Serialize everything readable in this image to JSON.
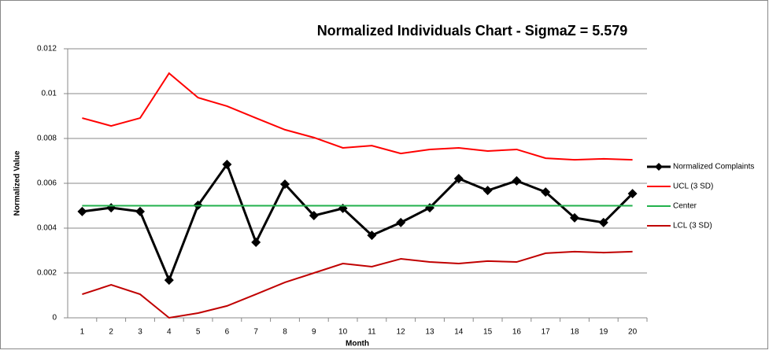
{
  "chart_data": {
    "type": "line",
    "title": "Normalized Individuals Chart - SigmaZ = 5.579",
    "x_label": "Month",
    "y_label": "Normalized Value",
    "categories": [
      "1",
      "2",
      "3",
      "4",
      "5",
      "6",
      "7",
      "8",
      "9",
      "10",
      "11",
      "12",
      "13",
      "14",
      "15",
      "16",
      "17",
      "18",
      "19",
      "20"
    ],
    "series": [
      {
        "name": "Normalized Complaints",
        "color": "#000000",
        "marker": "diamond",
        "values": [
          0.00474,
          0.00491,
          0.00474,
          0.00168,
          0.00502,
          0.00684,
          0.00337,
          0.00596,
          0.00456,
          0.00488,
          0.00368,
          0.00425,
          0.00491,
          0.00621,
          0.00568,
          0.00611,
          0.00561,
          0.00446,
          0.00425,
          0.00554
        ]
      },
      {
        "name": "UCL (3 SD)",
        "color": "#ff0000",
        "values": [
          0.00891,
          0.00856,
          0.00891,
          0.01091,
          0.00982,
          0.00944,
          0.00891,
          0.00839,
          0.00804,
          0.00758,
          0.00768,
          0.00733,
          0.00751,
          0.00758,
          0.00744,
          0.00751,
          0.00712,
          0.00705,
          0.00709,
          0.00705
        ]
      },
      {
        "name": "Center",
        "color": "#22b14c",
        "values": [
          0.005,
          0.005,
          0.005,
          0.005,
          0.005,
          0.005,
          0.005,
          0.005,
          0.005,
          0.005,
          0.005,
          0.005,
          0.005,
          0.005,
          0.005,
          0.005,
          0.005,
          0.005,
          0.005,
          0.005
        ]
      },
      {
        "name": "LCL (3 SD)",
        "color": "#c00000",
        "values": [
          0.00105,
          0.00147,
          0.00105,
          0,
          0.00021,
          0.00053,
          0.00105,
          0.00158,
          0.002,
          0.00242,
          0.00228,
          0.00263,
          0.00249,
          0.00242,
          0.00253,
          0.00249,
          0.00288,
          0.00295,
          0.00291,
          0.00295
        ]
      }
    ],
    "ylim": [
      0,
      0.012
    ],
    "yticks": [
      0,
      0.002,
      0.004,
      0.006,
      0.008,
      0.01,
      0.012
    ],
    "grid": true,
    "legend": "right"
  }
}
